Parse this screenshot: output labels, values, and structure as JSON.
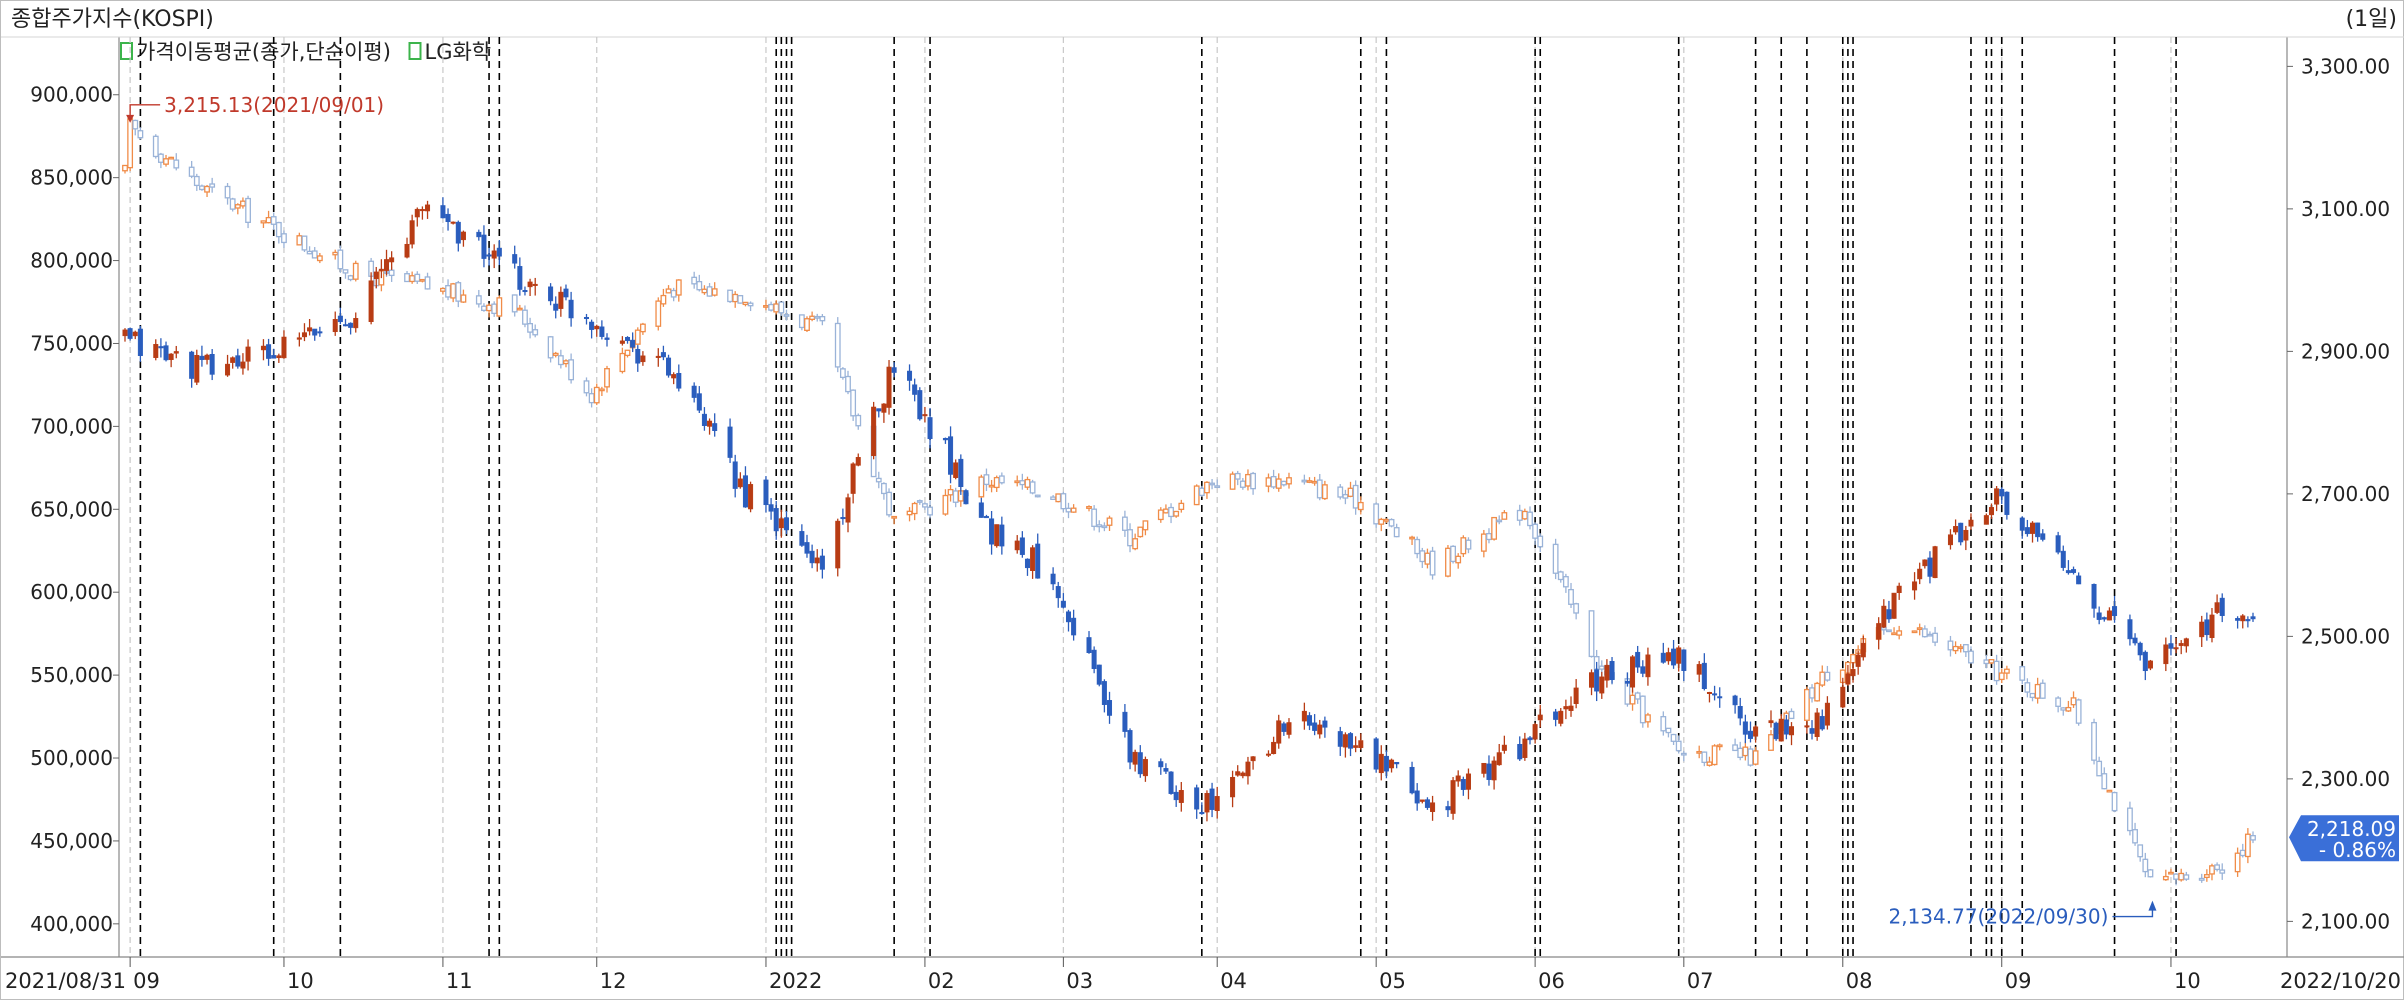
{
  "header": {
    "title": "종합주가지수(KOSPI)",
    "period": "(1일)"
  },
  "legend": [
    {
      "label": "가격이동평균(종가,단순이평)",
      "color": "#3cb44b"
    },
    {
      "label": "LG화학",
      "color": "#3cb44b"
    }
  ],
  "colors": {
    "lg_up": "#b83c14",
    "lg_down": "#2a5dbd",
    "kospi_up": "#f08c48",
    "kospi_down": "#9ab3d8",
    "grid": "#c8c8c8",
    "marker_dash": "#000000",
    "last_badge": "#3a6fd8"
  },
  "chart_data": {
    "type": "candlestick",
    "series": [
      {
        "name": "LG화학",
        "axis": "left",
        "unit": "KRW"
      },
      {
        "name": "종합주가지수(KOSPI)",
        "axis": "right",
        "unit": "index"
      }
    ],
    "left_axis": {
      "ticks": [
        "900,000",
        "850,000",
        "800,000",
        "750,000",
        "700,000",
        "650,000",
        "600,000",
        "550,000",
        "500,000",
        "450,000",
        "400,000"
      ],
      "range": [
        380000,
        930000
      ]
    },
    "right_axis": {
      "ticks": [
        "3,300.00",
        "3,100.00",
        "2,900.00",
        "2,700.00",
        "2,500.00",
        "2,300.00",
        "2,100.00"
      ],
      "range": [
        2050,
        3330
      ]
    },
    "x_axis": {
      "start_label": "2021/08/31",
      "end_label": "2022/10/20",
      "month_labels": [
        "09",
        "10",
        "11",
        "12",
        "2022",
        "02",
        "03",
        "04",
        "05",
        "06",
        "07",
        "08",
        "09",
        "10"
      ]
    },
    "lg_monthly_path": [
      [
        "2021-08-31",
        752000
      ],
      [
        "2021-09-15",
        735000
      ],
      [
        "2021-09-30",
        745000
      ],
      [
        "2021-10-15",
        770000
      ],
      [
        "2021-10-29",
        835000
      ],
      [
        "2021-11-15",
        790000
      ],
      [
        "2021-11-30",
        765000
      ],
      [
        "2021-12-15",
        735000
      ],
      [
        "2021-12-30",
        660000
      ],
      [
        "2022-01-14",
        615000
      ],
      [
        "2022-01-28",
        740000
      ],
      [
        "2022-02-15",
        640000
      ],
      [
        "2022-02-28",
        610000
      ],
      [
        "2022-03-15",
        500000
      ],
      [
        "2022-03-31",
        470000
      ],
      [
        "2022-04-15",
        525000
      ],
      [
        "2022-04-29",
        505000
      ],
      [
        "2022-05-13",
        470000
      ],
      [
        "2022-05-31",
        510000
      ],
      [
        "2022-06-15",
        550000
      ],
      [
        "2022-06-30",
        560000
      ],
      [
        "2022-07-15",
        515000
      ],
      [
        "2022-07-29",
        525000
      ],
      [
        "2022-08-12",
        600000
      ],
      [
        "2022-08-31",
        655000
      ],
      [
        "2022-09-15",
        610000
      ],
      [
        "2022-09-30",
        555000
      ],
      [
        "2022-10-14",
        590000
      ],
      [
        "2022-10-20",
        575000
      ]
    ],
    "kospi_monthly_path": [
      [
        "2021-08-31",
        3150
      ],
      [
        "2021-09-01",
        3215
      ],
      [
        "2021-09-15",
        3130
      ],
      [
        "2021-09-30",
        3070
      ],
      [
        "2021-10-15",
        3010
      ],
      [
        "2021-10-29",
        2990
      ],
      [
        "2021-11-15",
        2960
      ],
      [
        "2021-11-30",
        2840
      ],
      [
        "2021-12-15",
        2990
      ],
      [
        "2021-12-30",
        2980
      ],
      [
        "2022-01-14",
        2930
      ],
      [
        "2022-01-28",
        2660
      ],
      [
        "2022-02-15",
        2720
      ],
      [
        "2022-02-28",
        2700
      ],
      [
        "2022-03-15",
        2640
      ],
      [
        "2022-03-31",
        2720
      ],
      [
        "2022-04-15",
        2720
      ],
      [
        "2022-04-29",
        2690
      ],
      [
        "2022-05-13",
        2600
      ],
      [
        "2022-05-31",
        2680
      ],
      [
        "2022-06-15",
        2450
      ],
      [
        "2022-06-30",
        2340
      ],
      [
        "2022-07-15",
        2330
      ],
      [
        "2022-07-29",
        2450
      ],
      [
        "2022-08-12",
        2520
      ],
      [
        "2022-08-31",
        2450
      ],
      [
        "2022-09-15",
        2400
      ],
      [
        "2022-09-30",
        2150
      ],
      [
        "2022-10-14",
        2180
      ],
      [
        "2022-10-20",
        2218
      ]
    ],
    "annotations": [
      {
        "text": "3,215.13(2021/09/01)",
        "series": "KOSPI",
        "type": "high",
        "value": 3215.13,
        "date": "2021-09-01"
      },
      {
        "text": "2,134.77(2022/09/30)",
        "series": "KOSPI",
        "type": "low",
        "value": 2134.77,
        "date": "2022-09-30"
      }
    ],
    "last_value": {
      "value": "2,218.09",
      "change": "- 0.86%"
    },
    "event_markers": [
      "2021-09-03",
      "2021-09-29",
      "2021-10-12",
      "2021-11-10",
      "2021-11-12",
      "2022-01-05",
      "2022-01-06",
      "2022-01-07",
      "2022-01-08",
      "2022-01-28",
      "2022-02-04",
      "2022-03-29",
      "2022-04-29",
      "2022-05-04",
      "2022-06-02",
      "2022-06-03",
      "2022-06-30",
      "2022-07-15",
      "2022-07-20",
      "2022-07-25",
      "2022-08-01",
      "2022-08-02",
      "2022-08-03",
      "2022-08-26",
      "2022-08-29",
      "2022-08-30",
      "2022-09-01",
      "2022-09-05",
      "2022-09-23",
      "2022-10-05"
    ]
  }
}
